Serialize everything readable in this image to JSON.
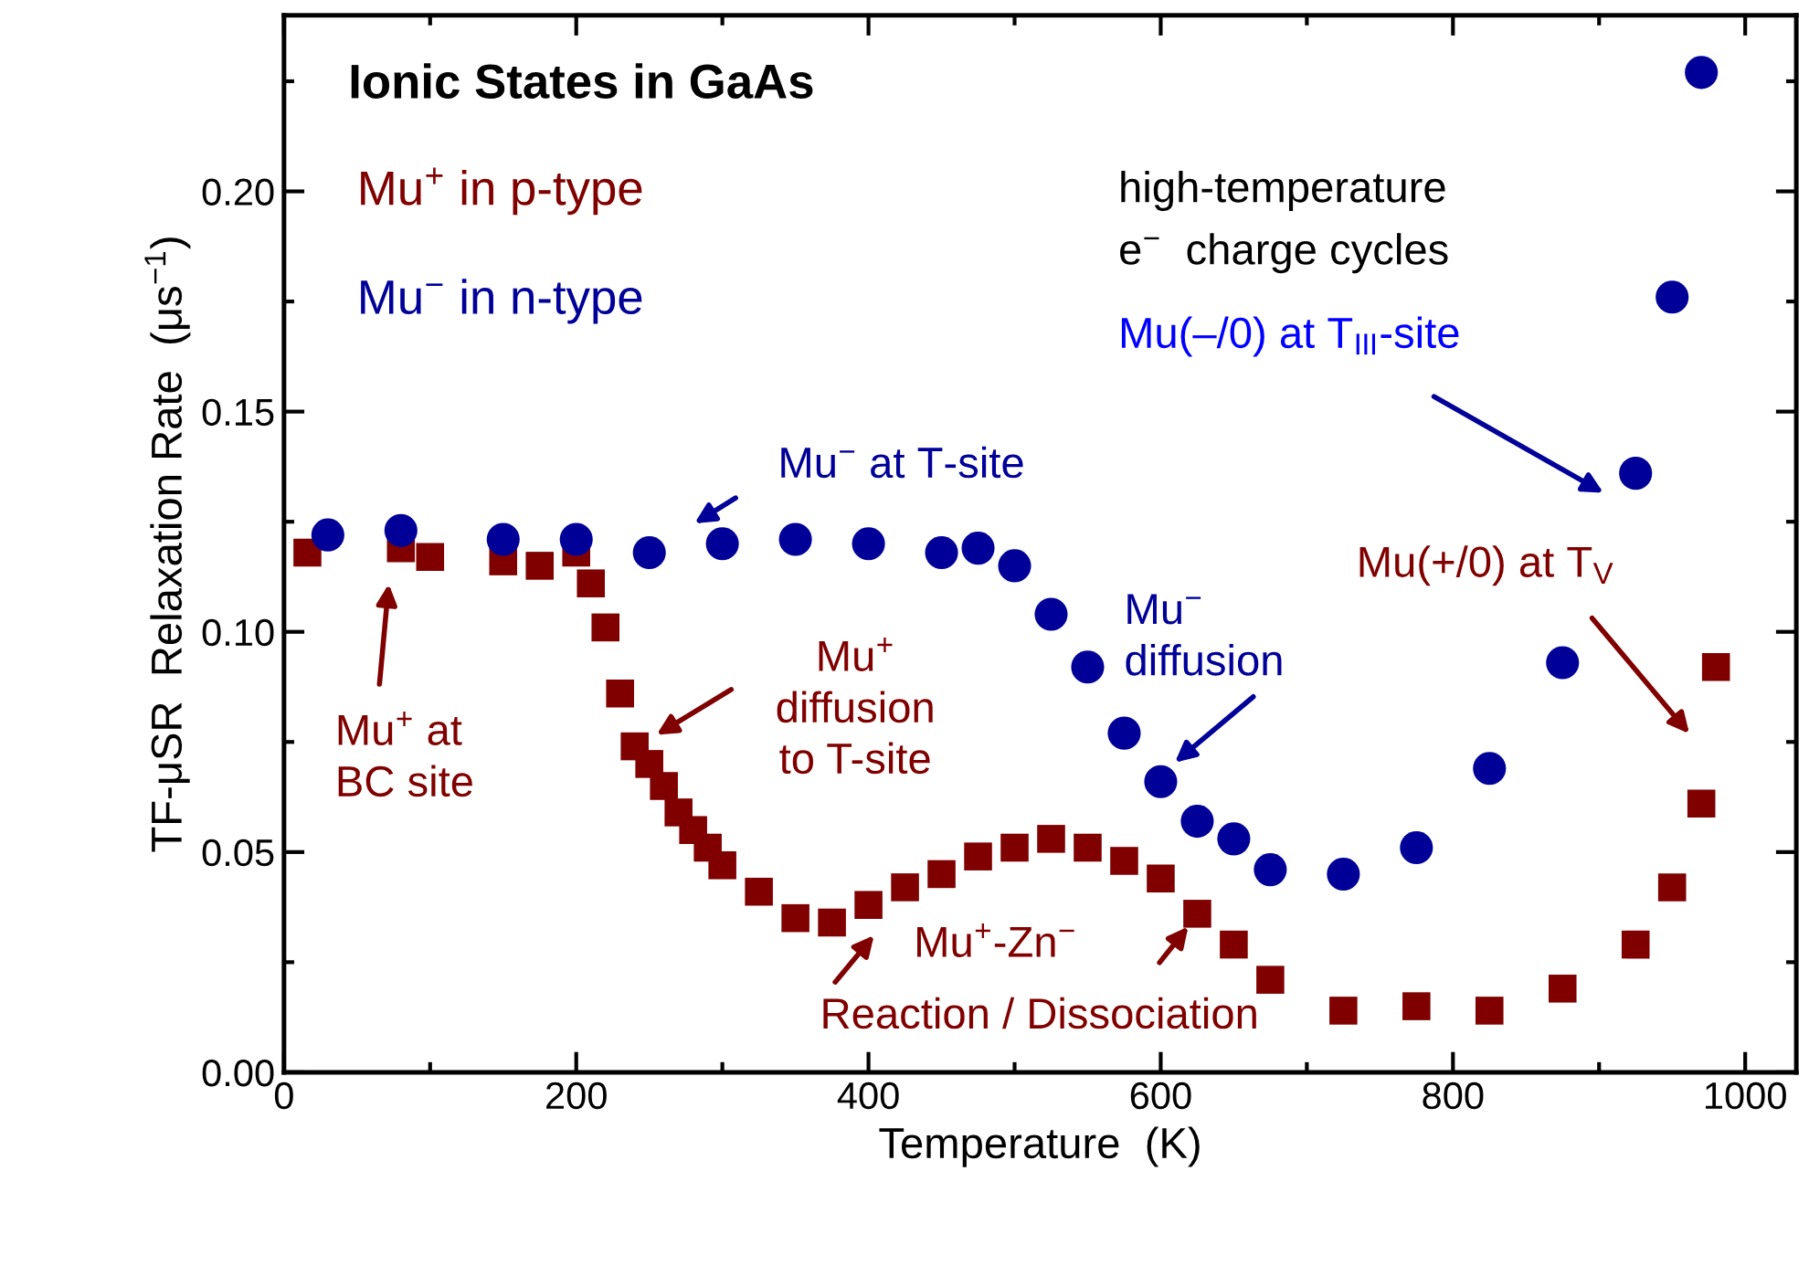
{
  "chart_data": {
    "type": "scatter",
    "title": "Ionic States in GaAs",
    "xlabel": "Temperature  (K)",
    "ylabel": "TF-μSR  Relaxation Rate  (μs$^{−1}$)",
    "xlim": [
      0,
      1035
    ],
    "ylim": [
      0,
      0.24
    ],
    "xticks": [
      0,
      200,
      400,
      600,
      800,
      1000
    ],
    "yticks": [
      {
        "value": 0,
        "label": "0.00"
      },
      0.05,
      {
        "value": 0.1,
        "label": "0.10"
      },
      0.15,
      {
        "value": 0.2,
        "label": "0.20"
      }
    ],
    "grid": false,
    "legend": false,
    "series": [
      {
        "name": "Mu$^{+}$ in p-type",
        "color": "#800000",
        "marker": "square",
        "x": [
          16,
          80,
          100,
          150,
          175,
          200,
          210,
          220,
          230,
          240,
          250,
          260,
          270,
          280,
          290,
          300,
          325,
          350,
          375,
          400,
          425,
          450,
          475,
          500,
          525,
          550,
          575,
          600,
          625,
          650,
          675,
          725,
          775,
          825,
          875,
          925,
          950,
          970,
          980
        ],
        "values": [
          0.118,
          0.119,
          0.117,
          0.116,
          0.115,
          0.118,
          0.111,
          0.101,
          0.086,
          0.074,
          0.07,
          0.065,
          0.059,
          0.055,
          0.051,
          0.047,
          0.041,
          0.035,
          0.034,
          0.038,
          0.042,
          0.045,
          0.049,
          0.051,
          0.053,
          0.051,
          0.048,
          0.044,
          0.036,
          0.029,
          0.021,
          0.014,
          0.015,
          0.014,
          0.019,
          0.029,
          0.042,
          0.061,
          0.092
        ]
      },
      {
        "name": "Mu$^{−}$ in n-type",
        "color": "#000099",
        "marker": "circle",
        "x": [
          30,
          80,
          150,
          200,
          250,
          300,
          350,
          400,
          450,
          475,
          500,
          525,
          550,
          575,
          600,
          625,
          650,
          675,
          725,
          775,
          825,
          875,
          925,
          950,
          970
        ],
        "values": [
          0.122,
          0.123,
          0.121,
          0.121,
          0.118,
          0.12,
          0.121,
          0.12,
          0.118,
          0.119,
          0.115,
          0.104,
          0.092,
          0.077,
          0.066,
          0.057,
          0.053,
          0.046,
          0.045,
          0.051,
          0.069,
          0.093,
          0.136,
          0.176,
          0.227
        ]
      }
    ],
    "annotations": [
      "Mu$^{−}$ at T-site",
      "Mu$^{+}$ at\nBC site",
      "Mu$^{+}$\ndiffusion\nto T-site",
      "Mu$^{+}$-Zn$^{−}$",
      {
        "text": "Reaction / Dissociation",
        "x": 625,
        "y": 0.036
      },
      "Mu$^{−}$\ndiffusion",
      "high-temperature\ne$^{−}$  charge cycles",
      "Mu(–/0) at T$_{III}$-site",
      "Mu(+/0) at T$_{V}$"
    ]
  }
}
